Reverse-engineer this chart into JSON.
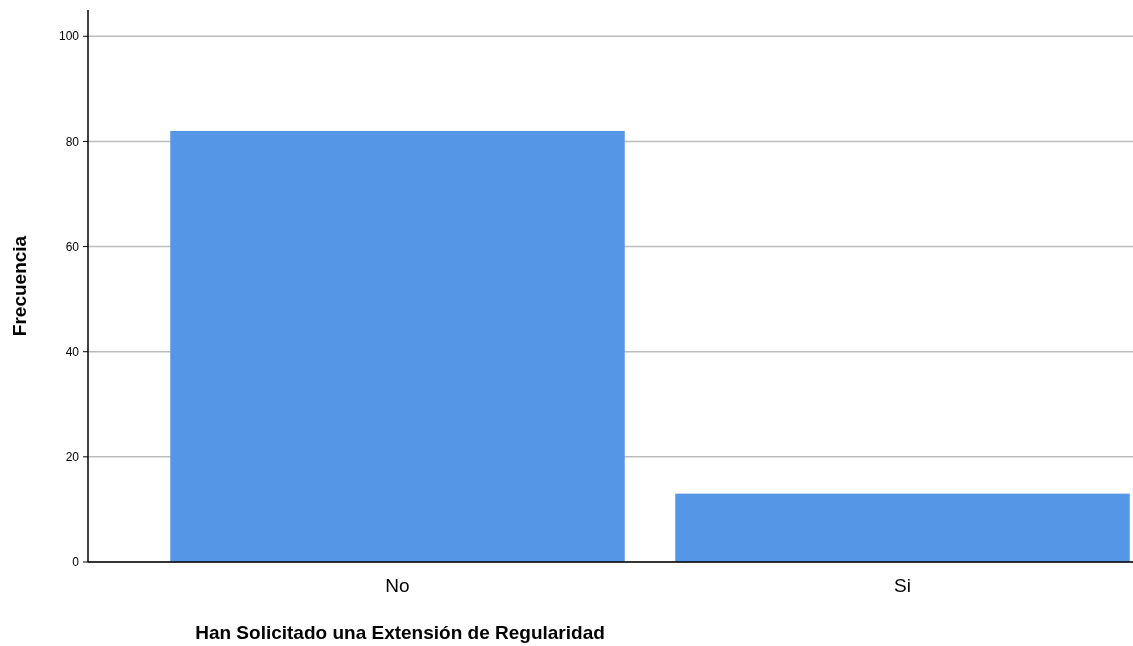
{
  "chart_data": {
    "type": "bar",
    "xlabel": "Han Solicitado una Extensión de Regularidad",
    "ylabel": "Frecuencia",
    "categories": [
      "No",
      "Si"
    ],
    "values": [
      82,
      13
    ],
    "color": "#5596e6",
    "ylim": [
      0,
      105
    ],
    "yticks": [
      0,
      20,
      40,
      60,
      80,
      100
    ],
    "grid": "y"
  }
}
